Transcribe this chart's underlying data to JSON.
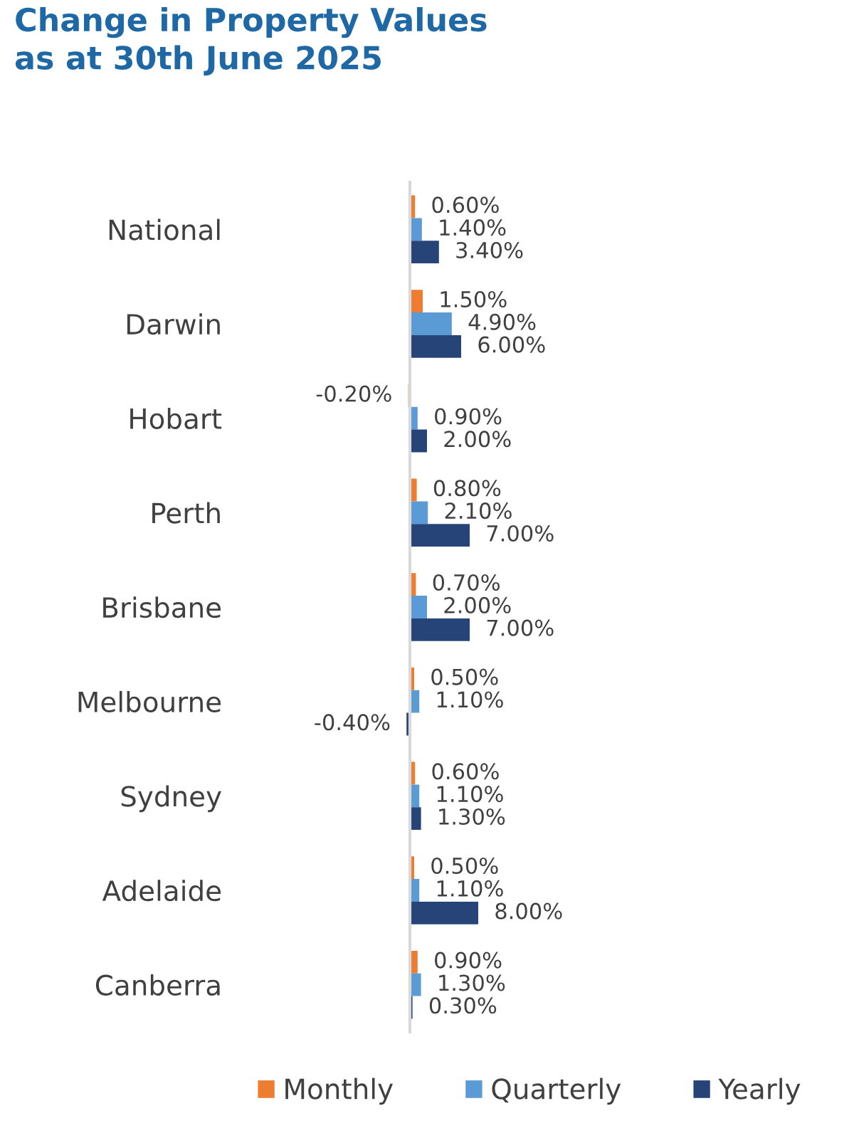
{
  "chart_data": {
    "type": "bar",
    "orientation": "horizontal",
    "title": "Change in Property Values\nas at 30th June 2025",
    "categories": [
      "National",
      "Darwin",
      "Hobart",
      "Perth",
      "Brisbane",
      "Melbourne",
      "Sydney",
      "Adelaide",
      "Canberra"
    ],
    "series": [
      {
        "name": "Monthly",
        "color": "#ed7d31",
        "values": [
          0.6,
          1.5,
          -0.2,
          0.8,
          0.7,
          0.5,
          0.6,
          0.5,
          0.9
        ],
        "value_labels": [
          "0.60%",
          "1.50%",
          "-0.20%",
          "0.80%",
          "0.70%",
          "0.50%",
          "0.60%",
          "0.50%",
          "0.90%"
        ]
      },
      {
        "name": "Quarterly",
        "color": "#5b9bd5",
        "values": [
          1.4,
          4.9,
          0.9,
          2.1,
          2.0,
          1.1,
          1.1,
          1.1,
          1.3
        ],
        "value_labels": [
          "1.40%",
          "4.90%",
          "0.90%",
          "2.10%",
          "2.00%",
          "1.10%",
          "1.10%",
          "1.10%",
          "1.30%"
        ]
      },
      {
        "name": "Yearly",
        "color": "#264478",
        "values": [
          3.4,
          6.0,
          2.0,
          7.0,
          7.0,
          -0.4,
          1.3,
          8.0,
          0.3
        ],
        "value_labels": [
          "3.40%",
          "6.00%",
          "2.00%",
          "7.00%",
          "7.00%",
          "-0.40%",
          "1.30%",
          "8.00%",
          "0.30%"
        ]
      }
    ],
    "tick_labels": "y",
    "legend": "bottom"
  }
}
